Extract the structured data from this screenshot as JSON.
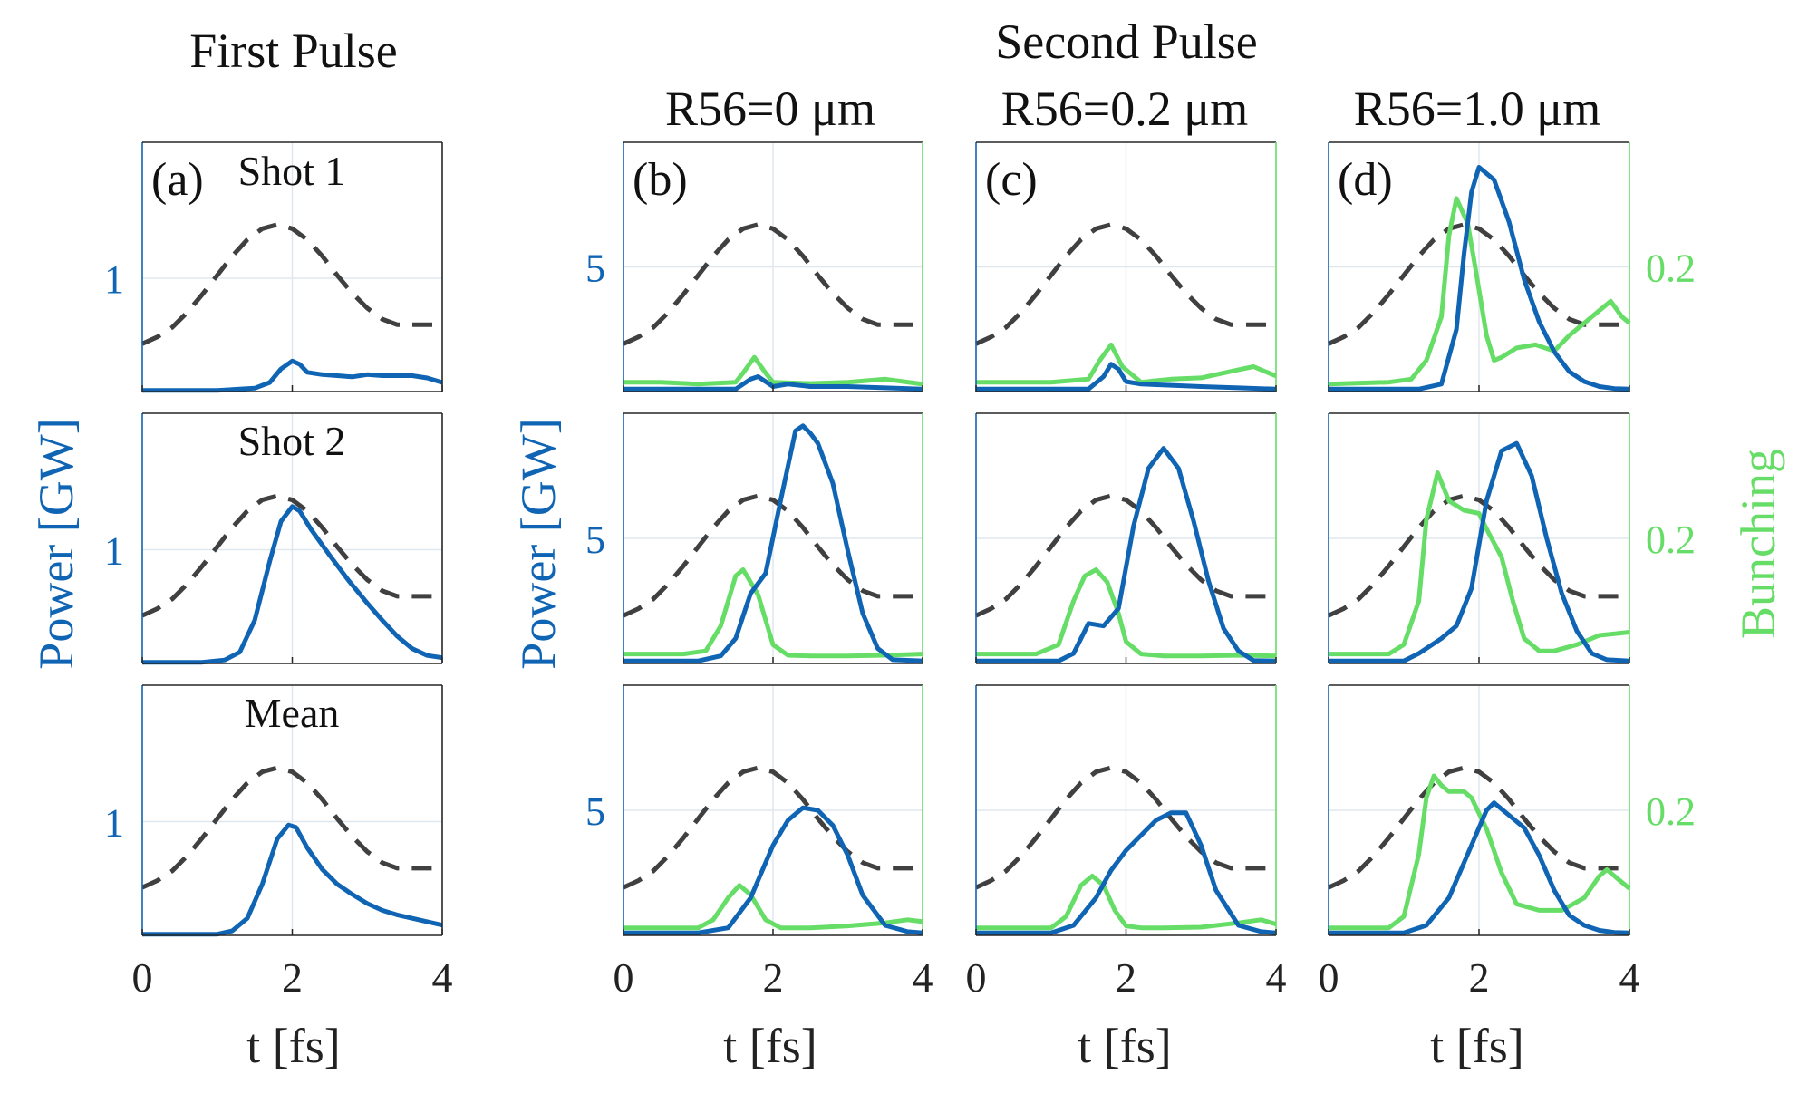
{
  "figure": {
    "col_titles": {
      "first": "First Pulse",
      "second": "Second Pulse",
      "b": "R56=0 μm",
      "c": "R56=0.2 μm",
      "d": "R56=1.0 μm"
    },
    "panel_labels": {
      "a": "(a)",
      "b": "(b)",
      "c": "(c)",
      "d": "(d)"
    },
    "row_labels": [
      "Shot 1",
      "Shot 2",
      "Mean"
    ],
    "axes": {
      "ylabel_left": "Power [GW]",
      "ylabel_right": "Bunching",
      "xlabel": "t [fs]",
      "xticks": [
        "0",
        "2",
        "4"
      ],
      "ytick_first": "1",
      "ytick_second": "5",
      "ytick_bunching": "0.2"
    },
    "colors": {
      "power": "#1064b4",
      "bunching": "#66dd66",
      "reference": "#404040",
      "axis": "#262626"
    }
  },
  "chart_data": {
    "type": "line",
    "layout": "grid 3 rows x 4 columns",
    "xlim": [
      0,
      4
    ],
    "columns": [
      {
        "id": "a",
        "title": "First Pulse",
        "ylim_power": [
          0,
          2.2
        ],
        "bunching_axis": false
      },
      {
        "id": "b",
        "title": "R56=0 μm",
        "ylim_power": [
          0,
          10
        ],
        "bunching_axis": false
      },
      {
        "id": "c",
        "title": "R56=0.2 μm",
        "ylim_power": [
          0,
          10
        ],
        "bunching_axis": false
      },
      {
        "id": "d",
        "title": "R56=1.0 μm",
        "ylim_power": [
          0,
          10
        ],
        "bunching_axis": true,
        "ylim_bunching": [
          0,
          0.4
        ]
      }
    ],
    "reference_profile": {
      "name": "current profile (dashed, normalized)",
      "x": [
        0,
        0.2,
        0.4,
        0.6,
        0.8,
        1.0,
        1.2,
        1.4,
        1.6,
        1.8,
        2.0,
        2.2,
        2.4,
        2.6,
        2.8,
        3.0,
        3.2,
        3.4,
        3.5,
        3.6,
        3.8,
        4.0
      ],
      "y": [
        0.13,
        0.18,
        0.25,
        0.36,
        0.49,
        0.63,
        0.77,
        0.89,
        0.97,
        1.0,
        0.97,
        0.89,
        0.77,
        0.63,
        0.5,
        0.39,
        0.31,
        0.27,
        0.27,
        0.27,
        0.27,
        0.27
      ]
    },
    "first_pulse": [
      {
        "row": "Shot 1",
        "power": {
          "x": [
            0,
            0.5,
            1.0,
            1.5,
            1.7,
            1.85,
            2.0,
            2.1,
            2.2,
            2.4,
            2.6,
            2.8,
            3.0,
            3.2,
            3.4,
            3.6,
            3.8,
            4.0
          ],
          "y": [
            0.01,
            0.01,
            0.01,
            0.03,
            0.08,
            0.2,
            0.27,
            0.24,
            0.17,
            0.15,
            0.14,
            0.13,
            0.15,
            0.14,
            0.14,
            0.14,
            0.12,
            0.08
          ]
        }
      },
      {
        "row": "Shot 2",
        "power": {
          "x": [
            0,
            0.8,
            1.1,
            1.3,
            1.5,
            1.7,
            1.85,
            2.0,
            2.1,
            2.25,
            2.5,
            2.75,
            3.0,
            3.2,
            3.4,
            3.6,
            3.8,
            4.0
          ],
          "y": [
            0.01,
            0.01,
            0.03,
            0.1,
            0.38,
            0.9,
            1.25,
            1.38,
            1.34,
            1.18,
            0.95,
            0.73,
            0.53,
            0.38,
            0.24,
            0.13,
            0.07,
            0.05
          ]
        }
      },
      {
        "row": "Mean",
        "power": {
          "x": [
            0,
            1.0,
            1.2,
            1.4,
            1.6,
            1.8,
            1.95,
            2.05,
            2.2,
            2.4,
            2.6,
            2.8,
            3.0,
            3.2,
            3.4,
            3.6,
            3.8,
            4.0
          ],
          "y": [
            0.01,
            0.01,
            0.04,
            0.15,
            0.45,
            0.85,
            0.97,
            0.95,
            0.77,
            0.58,
            0.45,
            0.36,
            0.28,
            0.22,
            0.18,
            0.15,
            0.12,
            0.09
          ]
        }
      }
    ],
    "second_pulse": {
      "b": [
        {
          "power": {
            "x": [
              0,
              1.5,
              1.7,
              1.8,
              1.9,
              2.0,
              2.2,
              2.5,
              3.0,
              3.5,
              4.0
            ],
            "y": [
              0.1,
              0.1,
              0.5,
              0.6,
              0.4,
              0.2,
              0.3,
              0.2,
              0.2,
              0.15,
              0.1
            ]
          },
          "bunching": {
            "x": [
              0,
              0.5,
              1.0,
              1.5,
              1.6,
              1.75,
              1.9,
              2.0,
              2.5,
              3.0,
              3.5,
              4.0
            ],
            "y": [
              0.015,
              0.015,
              0.012,
              0.015,
              0.03,
              0.055,
              0.03,
              0.015,
              0.013,
              0.015,
              0.02,
              0.012
            ]
          }
        },
        {
          "power": {
            "x": [
              0,
              1.0,
              1.3,
              1.5,
              1.7,
              1.9,
              2.1,
              2.3,
              2.4,
              2.5,
              2.6,
              2.8,
              3.0,
              3.2,
              3.4,
              3.6,
              4.0
            ],
            "y": [
              0.1,
              0.1,
              0.3,
              1.0,
              2.8,
              3.6,
              6.5,
              9.3,
              9.5,
              9.2,
              8.8,
              7.2,
              4.5,
              2.0,
              0.6,
              0.15,
              0.1
            ]
          },
          "bunching": {
            "x": [
              0,
              0.8,
              1.1,
              1.3,
              1.5,
              1.6,
              1.8,
              2.0,
              2.2,
              2.5,
              3.0,
              3.5,
              4.0
            ],
            "y": [
              0.015,
              0.015,
              0.02,
              0.06,
              0.14,
              0.15,
              0.11,
              0.03,
              0.013,
              0.012,
              0.012,
              0.013,
              0.015
            ]
          }
        },
        {
          "power": {
            "x": [
              0,
              1.0,
              1.4,
              1.7,
              2.0,
              2.2,
              2.4,
              2.6,
              2.8,
              3.0,
              3.2,
              3.5,
              3.8,
              4.0
            ],
            "y": [
              0.1,
              0.1,
              0.3,
              1.5,
              3.6,
              4.6,
              5.1,
              5.0,
              4.4,
              3.2,
              1.6,
              0.4,
              0.15,
              0.1
            ]
          },
          "bunching": {
            "x": [
              0,
              1.0,
              1.2,
              1.4,
              1.55,
              1.7,
              1.9,
              2.1,
              2.5,
              3.0,
              3.5,
              3.8,
              4.0
            ],
            "y": [
              0.012,
              0.012,
              0.025,
              0.06,
              0.08,
              0.065,
              0.025,
              0.012,
              0.012,
              0.015,
              0.02,
              0.025,
              0.022
            ]
          }
        }
      ],
      "c": [
        {
          "power": {
            "x": [
              0,
              1.5,
              1.7,
              1.8,
              1.9,
              2.0,
              2.2,
              2.6,
              3.0,
              3.5,
              4.0
            ],
            "y": [
              0.1,
              0.1,
              0.6,
              1.1,
              0.9,
              0.4,
              0.3,
              0.25,
              0.2,
              0.15,
              0.1
            ]
          },
          "bunching": {
            "x": [
              0,
              1.0,
              1.5,
              1.65,
              1.8,
              1.95,
              2.2,
              2.6,
              3.0,
              3.5,
              3.7,
              4.0
            ],
            "y": [
              0.015,
              0.015,
              0.02,
              0.05,
              0.075,
              0.04,
              0.015,
              0.02,
              0.022,
              0.035,
              0.04,
              0.025
            ]
          }
        },
        {
          "power": {
            "x": [
              0,
              1.1,
              1.3,
              1.5,
              1.7,
              1.9,
              2.1,
              2.3,
              2.5,
              2.7,
              2.9,
              3.1,
              3.3,
              3.5,
              3.7,
              4.0
            ],
            "y": [
              0.1,
              0.1,
              0.4,
              1.6,
              1.5,
              2.2,
              5.5,
              7.8,
              8.6,
              7.8,
              5.7,
              3.3,
              1.4,
              0.5,
              0.12,
              0.1
            ]
          },
          "bunching": {
            "x": [
              0,
              0.8,
              1.1,
              1.3,
              1.45,
              1.6,
              1.75,
              1.9,
              2.0,
              2.2,
              2.5,
              3.0,
              3.5,
              4.0
            ],
            "y": [
              0.015,
              0.015,
              0.03,
              0.1,
              0.14,
              0.15,
              0.13,
              0.08,
              0.035,
              0.015,
              0.012,
              0.012,
              0.013,
              0.012
            ]
          }
        },
        {
          "power": {
            "x": [
              0,
              1.0,
              1.3,
              1.6,
              1.8,
              2.0,
              2.2,
              2.4,
              2.6,
              2.8,
              3.0,
              3.2,
              3.5,
              3.8,
              4.0
            ],
            "y": [
              0.1,
              0.1,
              0.4,
              1.5,
              2.6,
              3.4,
              4.0,
              4.6,
              4.9,
              4.9,
              3.6,
              1.8,
              0.4,
              0.15,
              0.1
            ]
          },
          "bunching": {
            "x": [
              0,
              1.0,
              1.2,
              1.4,
              1.55,
              1.7,
              1.85,
              2.0,
              2.2,
              2.5,
              3.0,
              3.5,
              3.8,
              4.0
            ],
            "y": [
              0.012,
              0.012,
              0.03,
              0.08,
              0.095,
              0.08,
              0.04,
              0.015,
              0.012,
              0.012,
              0.013,
              0.02,
              0.025,
              0.018
            ]
          }
        }
      ],
      "d": [
        {
          "power": {
            "x": [
              0,
              1.2,
              1.5,
              1.7,
              1.8,
              1.9,
              2.0,
              2.2,
              2.4,
              2.6,
              2.8,
              3.0,
              3.2,
              3.4,
              3.6,
              3.8,
              4.0
            ],
            "y": [
              0.1,
              0.1,
              0.3,
              2.5,
              5.5,
              8.0,
              9.0,
              8.5,
              6.8,
              4.5,
              2.8,
              1.6,
              0.8,
              0.4,
              0.2,
              0.12,
              0.1
            ]
          },
          "bunching": {
            "x": [
              0,
              0.8,
              1.1,
              1.3,
              1.5,
              1.6,
              1.7,
              1.85,
              1.95,
              2.1,
              2.2,
              2.3,
              2.5,
              2.75,
              3.0,
              3.2,
              3.4,
              3.6,
              3.75,
              3.9,
              4.0
            ],
            "y": [
              0.012,
              0.015,
              0.02,
              0.05,
              0.12,
              0.25,
              0.31,
              0.27,
              0.2,
              0.09,
              0.05,
              0.055,
              0.07,
              0.075,
              0.065,
              0.09,
              0.11,
              0.13,
              0.145,
              0.12,
              0.11
            ]
          }
        },
        {
          "power": {
            "x": [
              0,
              1.0,
              1.2,
              1.5,
              1.7,
              1.9,
              2.1,
              2.3,
              2.5,
              2.7,
              2.9,
              3.1,
              3.3,
              3.5,
              3.7,
              4.0
            ],
            "y": [
              0.1,
              0.1,
              0.4,
              1.0,
              1.5,
              3.0,
              6.5,
              8.5,
              8.8,
              7.5,
              5.0,
              2.8,
              1.3,
              0.4,
              0.15,
              0.1
            ]
          },
          "bunching": {
            "x": [
              0,
              0.8,
              1.0,
              1.2,
              1.3,
              1.45,
              1.6,
              1.8,
              2.0,
              2.1,
              2.3,
              2.45,
              2.6,
              2.8,
              3.0,
              3.3,
              3.6,
              4.0
            ],
            "y": [
              0.015,
              0.015,
              0.03,
              0.1,
              0.23,
              0.305,
              0.26,
              0.245,
              0.24,
              0.215,
              0.17,
              0.1,
              0.04,
              0.02,
              0.02,
              0.03,
              0.045,
              0.05
            ]
          }
        },
        {
          "power": {
            "x": [
              0,
              1.0,
              1.3,
              1.6,
              1.9,
              2.1,
              2.2,
              2.4,
              2.6,
              2.8,
              3.0,
              3.2,
              3.4,
              3.6,
              3.8,
              4.0
            ],
            "y": [
              0.1,
              0.1,
              0.4,
              1.5,
              3.6,
              5.0,
              5.3,
              4.8,
              4.3,
              3.2,
              1.8,
              0.8,
              0.4,
              0.2,
              0.12,
              0.1
            ]
          },
          "bunching": {
            "x": [
              0,
              0.8,
              1.0,
              1.2,
              1.3,
              1.4,
              1.5,
              1.6,
              1.8,
              1.9,
              2.1,
              2.3,
              2.5,
              2.8,
              3.1,
              3.4,
              3.6,
              3.7,
              3.85,
              4.0
            ],
            "y": [
              0.012,
              0.012,
              0.03,
              0.13,
              0.22,
              0.255,
              0.24,
              0.23,
              0.23,
              0.22,
              0.17,
              0.1,
              0.05,
              0.04,
              0.04,
              0.06,
              0.095,
              0.105,
              0.09,
              0.075
            ]
          }
        }
      ]
    }
  }
}
